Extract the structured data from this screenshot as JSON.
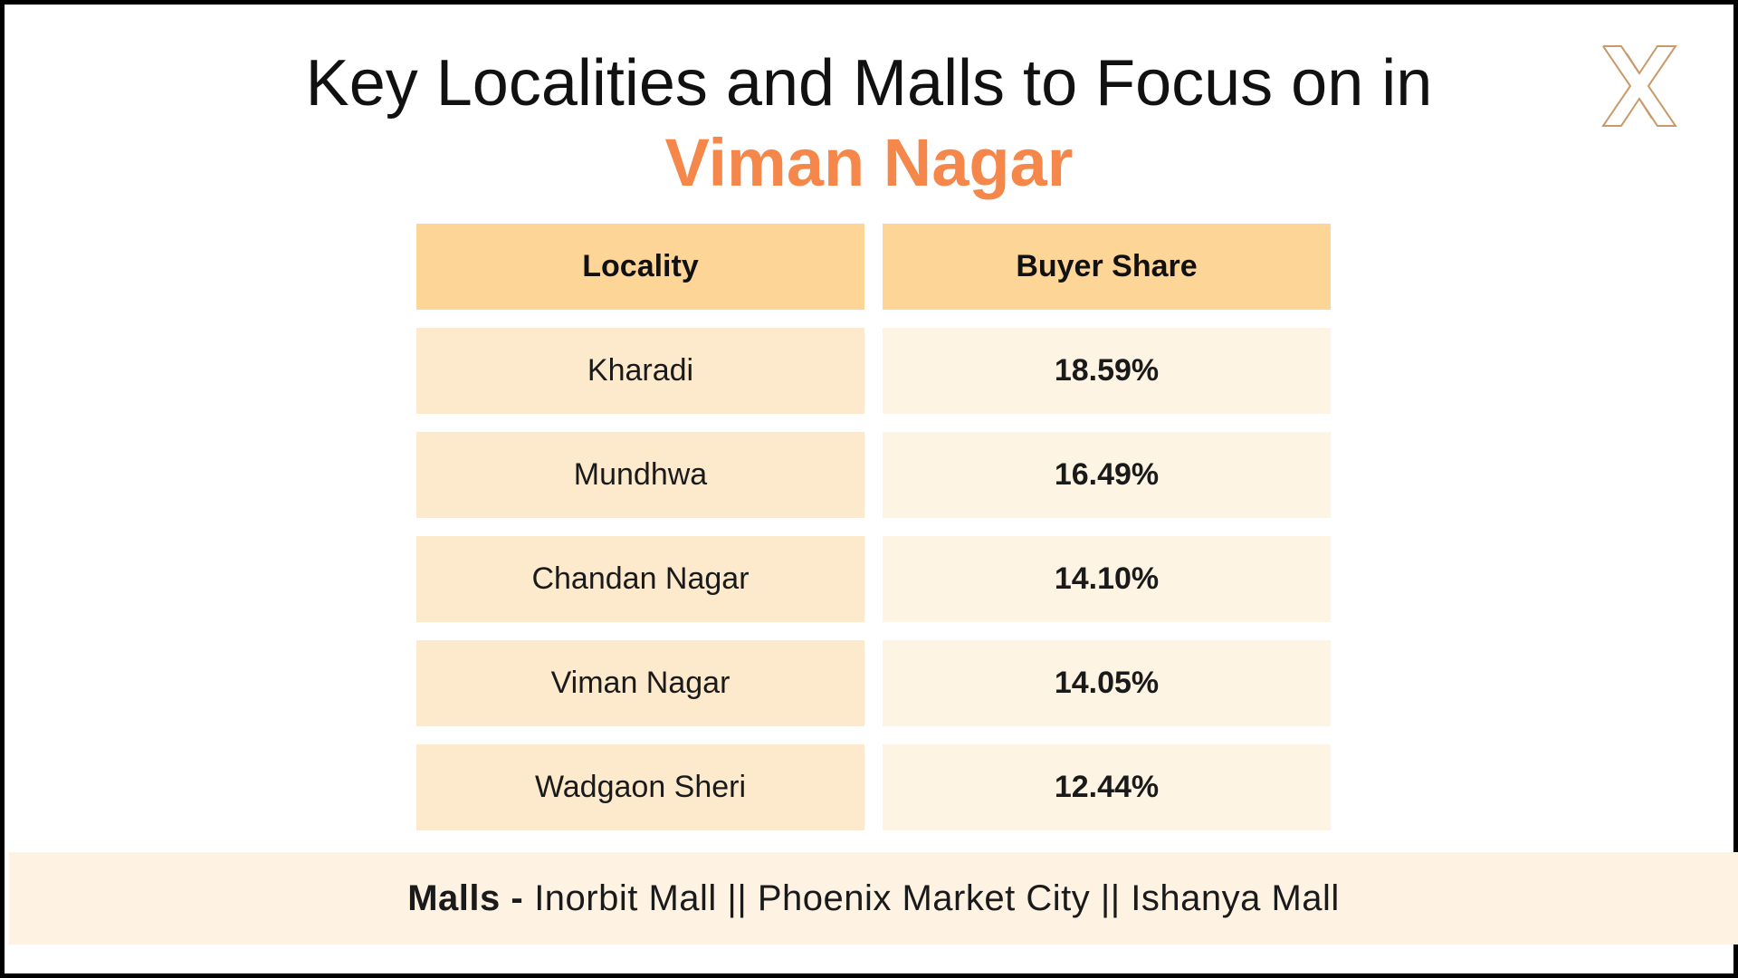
{
  "title": {
    "line1": "Key Localities and Malls to Focus on in",
    "line2": "Viman Nagar"
  },
  "logo": {
    "icon": "x-logo-icon"
  },
  "table": {
    "headers": [
      "Locality",
      "Buyer Share"
    ],
    "rows": [
      {
        "locality": "Kharadi",
        "share": "18.59%"
      },
      {
        "locality": "Mundhwa",
        "share": "16.49%"
      },
      {
        "locality": "Chandan Nagar",
        "share": "14.10%"
      },
      {
        "locality": "Viman Nagar",
        "share": "14.05%"
      },
      {
        "locality": "Wadgaon Sheri",
        "share": "12.44%"
      }
    ]
  },
  "malls": {
    "label": "Malls -",
    "list": "Inorbit Mall || Phoenix Market City || Ishanya Mall"
  },
  "colors": {
    "accent": "#F5874A",
    "header_bg": "#FDD597",
    "locality_bg": "#FDE9CC",
    "share_bg": "#FEF4E4",
    "footer_bg": "#FEF2E2",
    "logo_stroke": "#C89A6A"
  }
}
